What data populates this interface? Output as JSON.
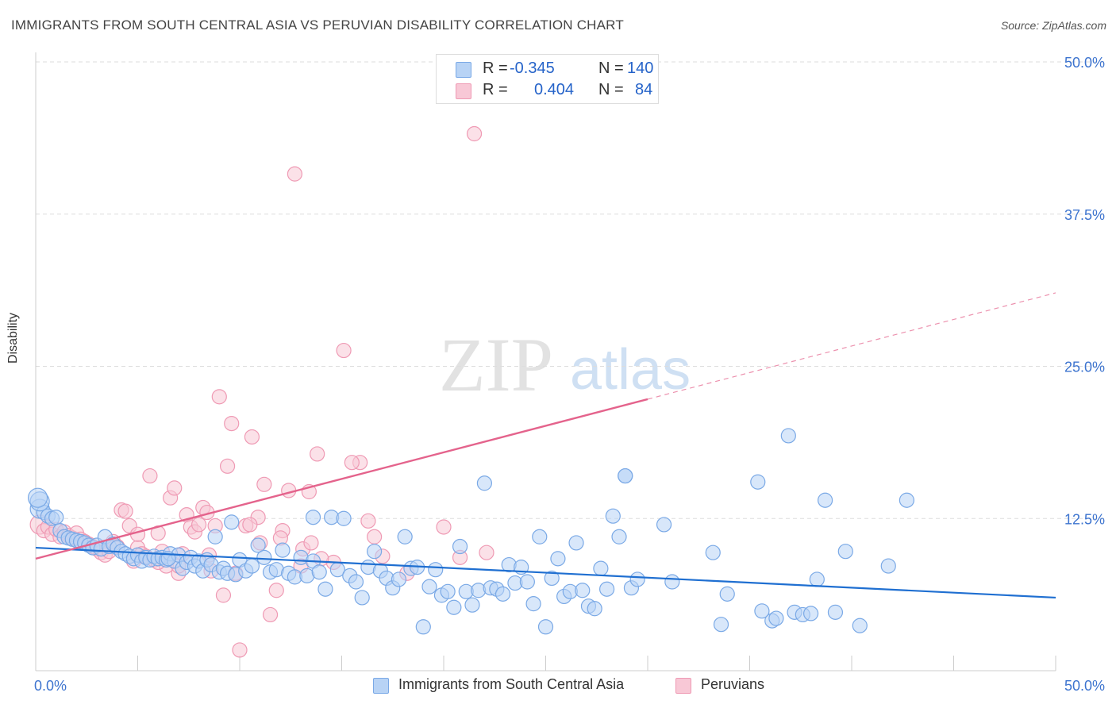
{
  "header": {
    "title": "IMMIGRANTS FROM SOUTH CENTRAL ASIA VS PERUVIAN DISABILITY CORRELATION CHART",
    "source": "Source: ZipAtlas.com"
  },
  "watermark": {
    "zip": "ZIP",
    "atlas": "atlas"
  },
  "stats": [
    {
      "r_label": "R =",
      "r_value": "-0.345",
      "n_label": "N =",
      "n_value": "140"
    },
    {
      "r_label": "R =",
      "r_value": "0.404",
      "n_label": "N =",
      "n_value": "84"
    }
  ],
  "colors": {
    "blue_fill": "#b8d3f5",
    "blue_stroke": "#7aa9e6",
    "blue_line": "#1f6fd1",
    "pink_fill": "#f8c8d6",
    "pink_stroke": "#ef9ab4",
    "pink_line": "#e4638c",
    "tick_text": "#3d74cf",
    "grid": "#dddddd"
  },
  "chart_data": {
    "type": "scatter",
    "title": "IMMIGRANTS FROM SOUTH CENTRAL ASIA VS PERUVIAN DISABILITY CORRELATION CHART",
    "xlabel": "",
    "ylabel": "Disability",
    "xlim": [
      0,
      50
    ],
    "ylim": [
      0,
      50
    ],
    "x_ticks": [
      "0.0%",
      "50.0%"
    ],
    "y_ticks": [
      "12.5%",
      "25.0%",
      "37.5%",
      "50.0%"
    ],
    "grid": true,
    "legend_position": "bottom",
    "series": [
      {
        "name": "Immigrants from South Central Asia",
        "color": "blue",
        "trend": {
          "x": [
            0,
            50
          ],
          "y": [
            10.1,
            6.0
          ]
        },
        "points": [
          [
            0.2,
            13.3
          ],
          [
            0.4,
            13.0
          ],
          [
            0.6,
            12.7
          ],
          [
            0.8,
            12.5
          ],
          [
            1.0,
            12.6
          ],
          [
            1.2,
            11.5
          ],
          [
            1.4,
            11.0
          ],
          [
            1.6,
            10.9
          ],
          [
            1.8,
            10.8
          ],
          [
            2.0,
            10.7
          ],
          [
            2.2,
            10.6
          ],
          [
            2.4,
            10.5
          ],
          [
            2.6,
            10.3
          ],
          [
            2.8,
            10.1
          ],
          [
            3.0,
            10.3
          ],
          [
            3.2,
            10.0
          ],
          [
            3.4,
            11.0
          ],
          [
            3.6,
            10.2
          ],
          [
            3.8,
            10.4
          ],
          [
            4.0,
            10.1
          ],
          [
            4.2,
            9.8
          ],
          [
            4.4,
            9.6
          ],
          [
            4.6,
            9.4
          ],
          [
            4.8,
            9.2
          ],
          [
            5.0,
            9.5
          ],
          [
            5.2,
            9.0
          ],
          [
            5.4,
            9.3
          ],
          [
            5.6,
            9.1
          ],
          [
            5.8,
            9.4
          ],
          [
            6.0,
            9.2
          ],
          [
            6.2,
            9.3
          ],
          [
            6.4,
            9.1
          ],
          [
            6.6,
            9.6
          ],
          [
            6.8,
            9.0
          ],
          [
            7.0,
            9.5
          ],
          [
            7.2,
            8.4
          ],
          [
            7.4,
            8.9
          ],
          [
            7.6,
            9.3
          ],
          [
            7.8,
            8.6
          ],
          [
            8.0,
            9.0
          ],
          [
            8.2,
            8.2
          ],
          [
            8.4,
            9.1
          ],
          [
            8.6,
            8.7
          ],
          [
            8.8,
            11.0
          ],
          [
            9.0,
            8.1
          ],
          [
            9.2,
            8.4
          ],
          [
            9.4,
            8.0
          ],
          [
            9.6,
            12.2
          ],
          [
            9.8,
            7.9
          ],
          [
            10.0,
            9.1
          ],
          [
            10.3,
            8.2
          ],
          [
            10.6,
            8.6
          ],
          [
            10.9,
            10.3
          ],
          [
            11.2,
            9.3
          ],
          [
            11.5,
            8.1
          ],
          [
            11.8,
            8.3
          ],
          [
            12.1,
            9.9
          ],
          [
            12.4,
            8.0
          ],
          [
            12.7,
            7.7
          ],
          [
            13.0,
            9.3
          ],
          [
            13.3,
            7.8
          ],
          [
            13.6,
            9.0
          ],
          [
            13.9,
            8.1
          ],
          [
            14.2,
            6.7
          ],
          [
            14.5,
            12.6
          ],
          [
            14.8,
            8.3
          ],
          [
            15.1,
            12.5
          ],
          [
            15.4,
            7.8
          ],
          [
            15.7,
            7.3
          ],
          [
            16.0,
            6.0
          ],
          [
            16.3,
            8.5
          ],
          [
            16.6,
            9.8
          ],
          [
            16.9,
            8.2
          ],
          [
            17.2,
            7.6
          ],
          [
            17.5,
            6.8
          ],
          [
            17.8,
            7.5
          ],
          [
            18.1,
            11.0
          ],
          [
            18.4,
            8.4
          ],
          [
            18.7,
            8.5
          ],
          [
            19.0,
            3.6
          ],
          [
            19.3,
            6.9
          ],
          [
            19.6,
            8.3
          ],
          [
            19.9,
            6.2
          ],
          [
            20.2,
            6.5
          ],
          [
            20.5,
            5.2
          ],
          [
            20.8,
            10.2
          ],
          [
            21.1,
            6.5
          ],
          [
            21.4,
            5.4
          ],
          [
            21.7,
            6.6
          ],
          [
            22.0,
            15.4
          ],
          [
            22.3,
            6.8
          ],
          [
            22.6,
            6.7
          ],
          [
            22.9,
            6.3
          ],
          [
            23.2,
            8.7
          ],
          [
            23.5,
            7.2
          ],
          [
            23.8,
            8.5
          ],
          [
            24.1,
            7.3
          ],
          [
            24.4,
            5.5
          ],
          [
            24.7,
            11.0
          ],
          [
            25.0,
            3.6
          ],
          [
            25.3,
            7.6
          ],
          [
            25.6,
            9.2
          ],
          [
            25.9,
            6.1
          ],
          [
            26.2,
            6.5
          ],
          [
            26.5,
            10.5
          ],
          [
            26.8,
            6.6
          ],
          [
            27.1,
            5.3
          ],
          [
            27.4,
            5.1
          ],
          [
            27.7,
            8.4
          ],
          [
            28.0,
            6.7
          ],
          [
            28.3,
            12.7
          ],
          [
            28.6,
            11.0
          ],
          [
            28.9,
            16.0
          ],
          [
            29.2,
            6.8
          ],
          [
            29.5,
            7.5
          ],
          [
            30.8,
            12.0
          ],
          [
            31.2,
            7.3
          ],
          [
            33.2,
            9.7
          ],
          [
            33.6,
            3.8
          ],
          [
            33.9,
            6.3
          ],
          [
            35.4,
            15.5
          ],
          [
            35.6,
            4.9
          ],
          [
            36.1,
            4.1
          ],
          [
            36.3,
            4.3
          ],
          [
            36.9,
            19.3
          ],
          [
            37.2,
            4.8
          ],
          [
            37.6,
            4.6
          ],
          [
            38.0,
            4.7
          ],
          [
            38.3,
            7.5
          ],
          [
            38.7,
            14.0
          ],
          [
            39.2,
            4.8
          ],
          [
            39.7,
            9.8
          ],
          [
            40.4,
            3.7
          ],
          [
            41.8,
            8.6
          ],
          [
            42.7,
            14.0
          ],
          [
            28.9,
            16.0
          ],
          [
            13.6,
            12.6
          ],
          [
            0.2,
            13.9
          ],
          [
            0.1,
            14.2
          ],
          [
            6.5,
            9.2
          ]
        ]
      },
      {
        "name": "Peruvians",
        "color": "pink",
        "trend": {
          "x": [
            0,
            30
          ],
          "y": [
            9.2,
            22.3
          ]
        },
        "points": [
          [
            0.2,
            12.0
          ],
          [
            0.4,
            11.5
          ],
          [
            0.6,
            11.8
          ],
          [
            0.8,
            11.2
          ],
          [
            1.0,
            11.6
          ],
          [
            1.2,
            11.0
          ],
          [
            1.4,
            11.4
          ],
          [
            1.6,
            11.1
          ],
          [
            1.8,
            10.9
          ],
          [
            2.0,
            11.3
          ],
          [
            2.2,
            10.8
          ],
          [
            2.4,
            10.6
          ],
          [
            2.6,
            10.4
          ],
          [
            2.8,
            10.2
          ],
          [
            3.0,
            10.0
          ],
          [
            3.2,
            9.7
          ],
          [
            3.4,
            9.5
          ],
          [
            3.6,
            9.8
          ],
          [
            3.8,
            10.6
          ],
          [
            4.0,
            10.2
          ],
          [
            4.2,
            13.2
          ],
          [
            4.4,
            13.1
          ],
          [
            4.6,
            11.9
          ],
          [
            4.8,
            9.0
          ],
          [
            5.0,
            10.1
          ],
          [
            5.2,
            9.6
          ],
          [
            5.4,
            9.4
          ],
          [
            5.6,
            16.0
          ],
          [
            5.8,
            9.1
          ],
          [
            6.0,
            11.3
          ],
          [
            6.2,
            9.8
          ],
          [
            6.4,
            8.6
          ],
          [
            6.6,
            14.2
          ],
          [
            6.8,
            15.0
          ],
          [
            7.0,
            8.0
          ],
          [
            7.2,
            9.6
          ],
          [
            7.4,
            12.8
          ],
          [
            7.6,
            11.8
          ],
          [
            7.8,
            11.4
          ],
          [
            8.0,
            12.0
          ],
          [
            8.2,
            13.4
          ],
          [
            8.4,
            13.0
          ],
          [
            8.6,
            8.2
          ],
          [
            8.8,
            11.9
          ],
          [
            9.0,
            22.5
          ],
          [
            9.2,
            6.2
          ],
          [
            9.4,
            16.8
          ],
          [
            9.6,
            20.3
          ],
          [
            9.8,
            8.0
          ],
          [
            10.0,
            1.7
          ],
          [
            10.3,
            11.9
          ],
          [
            10.6,
            19.2
          ],
          [
            10.9,
            12.6
          ],
          [
            11.2,
            15.3
          ],
          [
            11.5,
            4.6
          ],
          [
            11.8,
            6.6
          ],
          [
            12.1,
            11.5
          ],
          [
            12.4,
            14.8
          ],
          [
            12.7,
            40.8
          ],
          [
            13.1,
            10.0
          ],
          [
            13.4,
            14.7
          ],
          [
            13.8,
            17.8
          ],
          [
            14.6,
            8.9
          ],
          [
            15.1,
            26.3
          ],
          [
            15.9,
            17.1
          ],
          [
            16.3,
            12.3
          ],
          [
            16.6,
            11.0
          ],
          [
            17.0,
            9.4
          ],
          [
            18.2,
            8.0
          ],
          [
            20.0,
            11.8
          ],
          [
            20.8,
            9.3
          ],
          [
            21.5,
            44.1
          ],
          [
            22.1,
            9.7
          ],
          [
            13.0,
            8.6
          ],
          [
            13.5,
            10.5
          ],
          [
            14.0,
            9.2
          ],
          [
            15.5,
            17.1
          ],
          [
            12.0,
            10.9
          ],
          [
            11.0,
            10.5
          ],
          [
            10.5,
            12.0
          ],
          [
            8.5,
            9.5
          ],
          [
            7.0,
            8.6
          ],
          [
            6.0,
            8.9
          ],
          [
            5.0,
            11.2
          ]
        ]
      }
    ]
  },
  "legend": {
    "items": [
      {
        "label": "Immigrants from South Central Asia"
      },
      {
        "label": "Peruvians"
      }
    ]
  }
}
